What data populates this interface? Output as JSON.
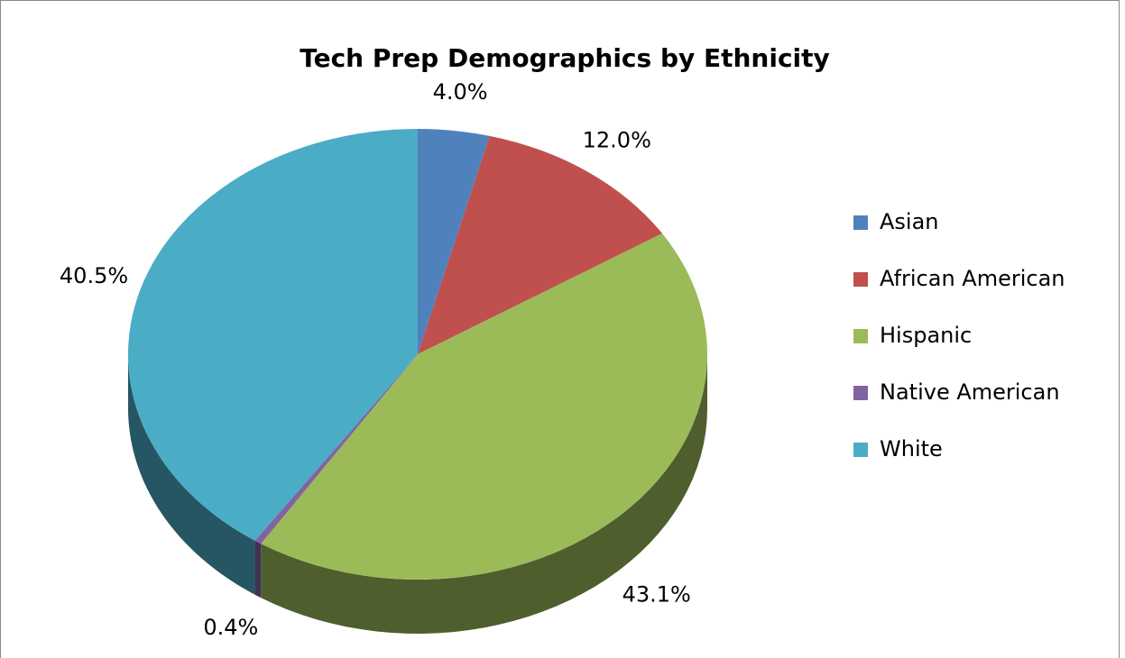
{
  "chart_data": {
    "type": "pie",
    "title": "Tech Prep Demographics by Ethnicity",
    "categories": [
      "Asian",
      "African American",
      "Hispanic",
      "Native American",
      "White"
    ],
    "values": [
      4.0,
      12.0,
      43.1,
      0.4,
      40.5
    ],
    "value_labels": [
      "4.0%",
      "12.0%",
      "43.1%",
      "0.4%",
      "40.5%"
    ],
    "colors": [
      "#4f81bd",
      "#c0504d",
      "#9bbb59",
      "#8064a2",
      "#4bacc6"
    ],
    "legend": "right"
  }
}
